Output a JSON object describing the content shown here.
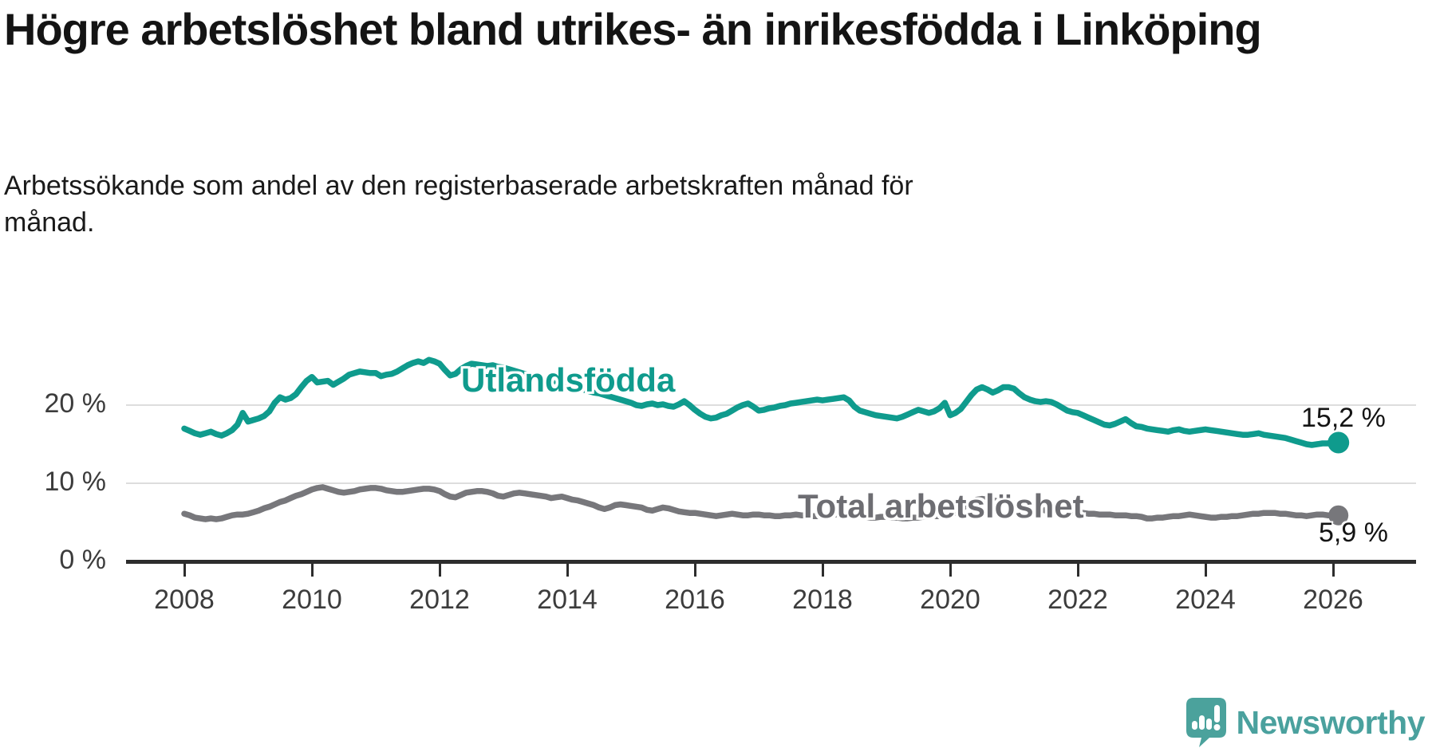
{
  "title": "Högre arbetslöshet bland utrikes- än inrikesfödda i Linköping",
  "subtitle": "Arbetssökande som andel av den registerbaserade arbetskraften månad för månad.",
  "branding": {
    "logo_text": "Newsworthy",
    "logo_color": "#4aa19e"
  },
  "chart_data": {
    "type": "line",
    "title": "Högre arbetslöshet bland utrikes- än inrikesfödda i Linköping",
    "xlabel": "",
    "ylabel": "",
    "x_start": 2008,
    "x_step_months": 1,
    "x_end_approx": 2026.1,
    "ylim": [
      0,
      33
    ],
    "grid": "horizontal",
    "legend_position": "inline-labels",
    "y_axis": {
      "ticks": [
        {
          "value": 0,
          "label": "0 %"
        },
        {
          "value": 10,
          "label": "10 %"
        },
        {
          "value": 20,
          "label": "20 %"
        }
      ]
    },
    "x_axis": {
      "ticks": [
        {
          "value": 2008,
          "label": "2008"
        },
        {
          "value": 2010,
          "label": "2010"
        },
        {
          "value": 2012,
          "label": "2012"
        },
        {
          "value": 2014,
          "label": "2014"
        },
        {
          "value": 2016,
          "label": "2016"
        },
        {
          "value": 2018,
          "label": "2018"
        },
        {
          "value": 2020,
          "label": "2020"
        },
        {
          "value": 2022,
          "label": "2022"
        },
        {
          "value": 2024,
          "label": "2024"
        },
        {
          "value": 2026,
          "label": "2026"
        }
      ]
    },
    "series": [
      {
        "name": "Utlandsfödda",
        "color": "#0f9b8d",
        "end_label": "15,2 %",
        "end_value": 15.2,
        "values": [
          17.0,
          16.7,
          16.4,
          16.2,
          16.4,
          16.6,
          16.3,
          16.1,
          16.4,
          16.8,
          17.5,
          19.0,
          17.9,
          18.1,
          18.3,
          18.6,
          19.2,
          20.3,
          21.0,
          20.7,
          20.9,
          21.4,
          22.3,
          23.1,
          23.6,
          22.9,
          23.0,
          23.1,
          22.6,
          23.0,
          23.4,
          23.9,
          24.1,
          24.3,
          24.2,
          24.1,
          24.1,
          23.7,
          23.9,
          24.0,
          24.3,
          24.7,
          25.1,
          25.4,
          25.6,
          25.4,
          25.8,
          25.6,
          25.3,
          24.5,
          23.8,
          24.0,
          24.6,
          25.0,
          25.3,
          25.2,
          25.1,
          25.0,
          25.1,
          24.9,
          24.8,
          24.6,
          24.4,
          24.2,
          24.0,
          23.8,
          23.7,
          23.5,
          23.3,
          23.1,
          23.0,
          22.9,
          22.8,
          22.5,
          22.2,
          22.0,
          21.8,
          21.6,
          21.5,
          21.3,
          21.1,
          20.9,
          20.7,
          20.5,
          20.3,
          20.0,
          19.9,
          20.1,
          20.2,
          20.0,
          20.1,
          19.9,
          19.8,
          20.1,
          20.5,
          20.0,
          19.4,
          18.9,
          18.5,
          18.3,
          18.4,
          18.7,
          18.9,
          19.3,
          19.7,
          20.0,
          20.2,
          19.8,
          19.3,
          19.4,
          19.6,
          19.7,
          19.9,
          20.0,
          20.2,
          20.3,
          20.4,
          20.5,
          20.6,
          20.7,
          20.6,
          20.7,
          20.8,
          20.9,
          21.0,
          20.6,
          19.8,
          19.3,
          19.1,
          18.9,
          18.7,
          18.6,
          18.5,
          18.4,
          18.3,
          18.5,
          18.8,
          19.1,
          19.4,
          19.2,
          19.0,
          19.2,
          19.6,
          20.3,
          18.7,
          19.0,
          19.5,
          20.4,
          21.3,
          22.0,
          22.3,
          22.0,
          21.6,
          21.9,
          22.3,
          22.3,
          22.1,
          21.5,
          21.0,
          20.7,
          20.5,
          20.4,
          20.5,
          20.4,
          20.1,
          19.7,
          19.3,
          19.1,
          19.0,
          18.7,
          18.4,
          18.1,
          17.8,
          17.5,
          17.4,
          17.6,
          17.9,
          18.2,
          17.7,
          17.3,
          17.2,
          17.0,
          16.9,
          16.8,
          16.7,
          16.6,
          16.8,
          16.9,
          16.7,
          16.6,
          16.7,
          16.8,
          16.9,
          16.8,
          16.7,
          16.6,
          16.5,
          16.4,
          16.3,
          16.2,
          16.2,
          16.3,
          16.4,
          16.2,
          16.1,
          16.0,
          15.9,
          15.8,
          15.6,
          15.4,
          15.2,
          15.0,
          14.9,
          15.0,
          15.1,
          15.1,
          15.2,
          15.2
        ]
      },
      {
        "name": "Total arbetslöshet",
        "color": "#77777b",
        "end_label": "5,9 %",
        "end_value": 5.9,
        "values": [
          6.1,
          5.9,
          5.6,
          5.5,
          5.4,
          5.5,
          5.4,
          5.5,
          5.7,
          5.9,
          6.0,
          6.0,
          6.1,
          6.3,
          6.5,
          6.8,
          7.0,
          7.3,
          7.6,
          7.8,
          8.1,
          8.4,
          8.6,
          8.9,
          9.2,
          9.4,
          9.5,
          9.3,
          9.1,
          8.9,
          8.8,
          8.9,
          9.0,
          9.2,
          9.3,
          9.4,
          9.4,
          9.3,
          9.1,
          9.0,
          8.9,
          8.9,
          9.0,
          9.1,
          9.2,
          9.3,
          9.3,
          9.2,
          9.0,
          8.6,
          8.3,
          8.2,
          8.5,
          8.8,
          8.9,
          9.0,
          9.0,
          8.9,
          8.7,
          8.4,
          8.3,
          8.5,
          8.7,
          8.8,
          8.7,
          8.6,
          8.5,
          8.4,
          8.3,
          8.1,
          8.2,
          8.3,
          8.1,
          7.9,
          7.8,
          7.6,
          7.4,
          7.2,
          6.9,
          6.7,
          6.9,
          7.2,
          7.3,
          7.2,
          7.1,
          7.0,
          6.9,
          6.6,
          6.5,
          6.7,
          6.9,
          6.8,
          6.6,
          6.4,
          6.3,
          6.2,
          6.2,
          6.1,
          6.0,
          5.9,
          5.8,
          5.9,
          6.0,
          6.1,
          6.0,
          5.9,
          5.9,
          6.0,
          6.0,
          5.9,
          5.9,
          5.8,
          5.8,
          5.9,
          5.9,
          6.0,
          5.9,
          5.9,
          5.8,
          5.8,
          5.9,
          5.9,
          6.0,
          6.0,
          5.9,
          5.8,
          5.8,
          5.7,
          5.7,
          5.6,
          5.6,
          5.7,
          5.7,
          5.6,
          5.6,
          5.5,
          5.5,
          5.6,
          5.6,
          5.7,
          5.7,
          5.8,
          5.8,
          5.9,
          6.0,
          6.2,
          6.6,
          7.2,
          7.6,
          7.9,
          8.0,
          7.9,
          7.8,
          7.7,
          7.6,
          7.5,
          7.4,
          7.3,
          7.1,
          7.0,
          6.8,
          6.7,
          6.5,
          6.4,
          6.3,
          6.2,
          6.2,
          6.3,
          6.3,
          6.2,
          6.1,
          6.1,
          6.0,
          6.0,
          6.0,
          5.9,
          5.9,
          5.9,
          5.8,
          5.8,
          5.7,
          5.5,
          5.5,
          5.6,
          5.6,
          5.7,
          5.8,
          5.8,
          5.9,
          6.0,
          5.9,
          5.8,
          5.7,
          5.6,
          5.6,
          5.7,
          5.7,
          5.8,
          5.8,
          5.9,
          6.0,
          6.1,
          6.1,
          6.2,
          6.2,
          6.2,
          6.1,
          6.1,
          6.0,
          5.9,
          5.9,
          5.8,
          5.9,
          6.0,
          6.0,
          5.9,
          5.9,
          5.9
        ]
      }
    ]
  }
}
